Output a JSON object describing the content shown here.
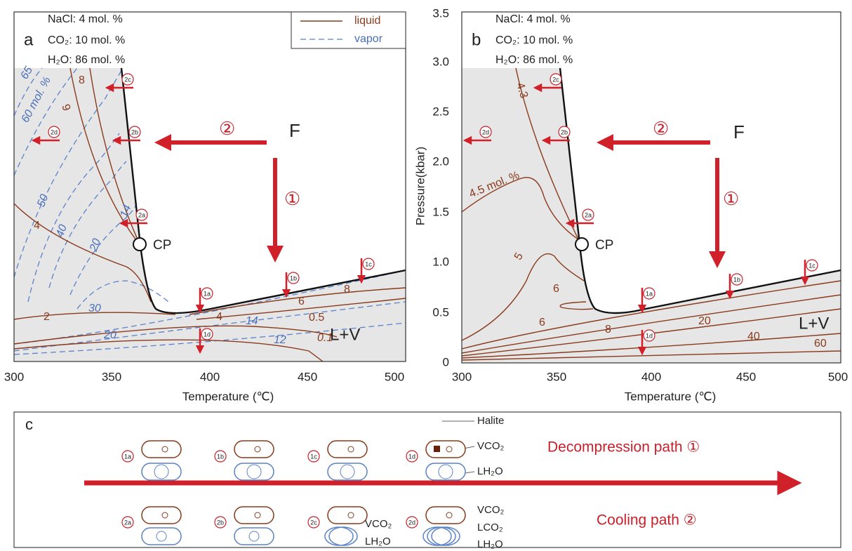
{
  "panel_a": {
    "label": "a",
    "composition": [
      "NaCl:  4 mol. %",
      "CO₂:  10 mol. %",
      "H₂O:  86 mol. %"
    ],
    "legend": [
      "liquid",
      "vapor"
    ],
    "point": "CP",
    "field": "F",
    "region": "L+V",
    "paths": [
      "①",
      "②"
    ],
    "vapor_contours": [
      "65",
      "60 mol. %",
      "50",
      "40",
      "20",
      "14",
      "30",
      "20",
      "14",
      "12"
    ],
    "liquid_contours": [
      "8",
      "9",
      "4",
      "2",
      "4",
      "6",
      "8",
      "0.5",
      "0.1"
    ],
    "stations": [
      "2c",
      "2d",
      "2b",
      "2a",
      "1a",
      "1b",
      "1c",
      "1d"
    ],
    "xticks": [
      "300",
      "350",
      "400",
      "450",
      "500"
    ],
    "xlabel": "Temperature (℃)"
  },
  "panel_b": {
    "label": "b",
    "composition": [
      "NaCl:  4 mol. %",
      "CO₂:  10 mol. %",
      "H₂O:  86 mol. %"
    ],
    "point": "CP",
    "field": "F",
    "region": "L+V",
    "paths": [
      "①",
      "②"
    ],
    "liquid_contours": [
      "4.3",
      "4.5 mol. %",
      "5",
      "6",
      "6",
      "8",
      "20",
      "40",
      "60"
    ],
    "stations": [
      "2c",
      "2d",
      "2b",
      "2a",
      "1a",
      "1b",
      "1c",
      "1d"
    ],
    "xticks": [
      "300",
      "350",
      "400",
      "450",
      "500"
    ],
    "xlabel": "Temperature (℃)",
    "yticks": [
      "0",
      "0.5",
      "1.0",
      "1.5",
      "2.0",
      "2.5",
      "3.0",
      "3.5"
    ],
    "ylabel": "Pressure(kbar)"
  },
  "panel_c": {
    "label": "c",
    "rows": [
      "Decompression path ①",
      "Cooling path ②"
    ],
    "stations": [
      [
        "1a",
        "1b",
        "1c",
        "1d"
      ],
      [
        "2a",
        "2b",
        "2c",
        "2d"
      ]
    ],
    "annotations": [
      "Halite",
      "VCO₂",
      "LH₂O",
      "VCO₂",
      "LH₂O",
      "VCO₂",
      "LCO₂",
      "LH₂O"
    ]
  }
}
